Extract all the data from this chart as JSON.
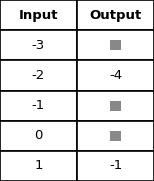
{
  "headers": [
    "Input",
    "Output"
  ],
  "rows": [
    [
      "-3",
      "square"
    ],
    [
      "-2",
      "-4"
    ],
    [
      "-1",
      "square"
    ],
    [
      "0",
      "square"
    ],
    [
      "1",
      "-1"
    ]
  ],
  "header_bg": "#ffffff",
  "header_text_color": "#000000",
  "cell_bg": "#ffffff",
  "square_color": "#888888",
  "border_color": "#000000",
  "header_fontsize": 9.5,
  "cell_fontsize": 9.5,
  "fig_width": 1.54,
  "fig_height": 1.81,
  "dpi": 100
}
